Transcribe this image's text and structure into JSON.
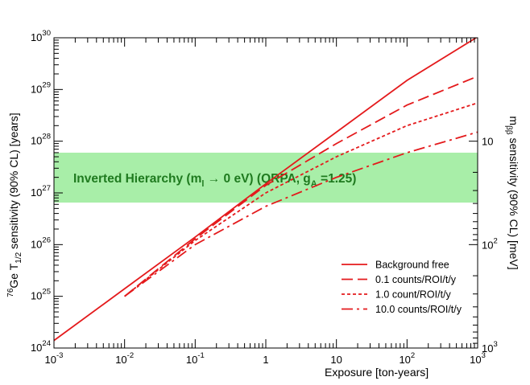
{
  "chart_data": {
    "type": "line",
    "x_scale": "log",
    "y_scale": "log",
    "xlim": [
      0.001,
      1000
    ],
    "ylim": [
      1e+24,
      1e+30
    ],
    "xlabel": "Exposure [ton-years]",
    "ylabel": {
      "pre": "76",
      "main": "Ge T",
      "sub": "1/2",
      "post": " sensitivity (90% CL) [years]"
    },
    "y2label": {
      "main": "m",
      "sub": "ββ",
      "post": " sensitivity (90% CL) [meV]"
    },
    "x_ticks": [
      {
        "value": 0.001,
        "base": "10",
        "exp": "-3"
      },
      {
        "value": 0.01,
        "base": "10",
        "exp": "-2"
      },
      {
        "value": 0.1,
        "base": "10",
        "exp": "-1"
      },
      {
        "value": 1,
        "base": "1",
        "exp": ""
      },
      {
        "value": 10,
        "base": "10",
        "exp": ""
      },
      {
        "value": 100,
        "base": "10",
        "exp": "2"
      },
      {
        "value": 1000,
        "base": "10",
        "exp": "3"
      }
    ],
    "y_ticks": [
      {
        "value": 1e+24,
        "base": "10",
        "exp": "24"
      },
      {
        "value": 1e+25,
        "base": "10",
        "exp": "25"
      },
      {
        "value": 1e+26,
        "base": "10",
        "exp": "26"
      },
      {
        "value": 1e+27,
        "base": "10",
        "exp": "27"
      },
      {
        "value": 1e+28,
        "base": "10",
        "exp": "28"
      },
      {
        "value": 1e+29,
        "base": "10",
        "exp": "29"
      },
      {
        "value": 1e+30,
        "base": "10",
        "exp": "30"
      }
    ],
    "y2_ticks": [
      {
        "value": 1e+28,
        "base": "10",
        "exp": ""
      },
      {
        "value": 1e+26,
        "base": "10",
        "exp": "2"
      },
      {
        "value": 1e+24,
        "base": "10",
        "exp": "3"
      }
    ],
    "band": {
      "y_low": 6.5e+26,
      "y_high": 6e+27,
      "color": "#a8eea8",
      "label": {
        "part1": "Inverted Hierarchy (m",
        "sub1": "l",
        "part2": " → 0 eV) (QRPA, g",
        "sub2": "A",
        "part3": " =1.25)"
      }
    },
    "series": [
      {
        "name": "Background free",
        "style": "solid",
        "color": "#e41a1c",
        "x": [
          0.001,
          0.01,
          0.1,
          1,
          10,
          100,
          950
        ],
        "y": [
          1.4e+24,
          1.4e+25,
          1.4e+26,
          1.5e+27,
          1.5e+28,
          1.5e+29,
          1e+30
        ]
      },
      {
        "name": "0.1 counts/ROI/t/y",
        "style": "dash",
        "color": "#e41a1c",
        "x": [
          0.01,
          0.1,
          1,
          10,
          100,
          1000
        ],
        "y": [
          1e+25,
          1.3e+26,
          1.4e+27,
          9e+27,
          5e+28,
          1.8e+29
        ]
      },
      {
        "name": "1.0 count/ROI/t/y",
        "style": "dot",
        "color": "#e41a1c",
        "x": [
          0.01,
          0.1,
          1,
          10,
          100,
          1000
        ],
        "y": [
          1e+25,
          1.2e+26,
          1e+27,
          5e+27,
          2e+28,
          5.5e+28
        ]
      },
      {
        "name": "10.0 counts/ROI/t/y",
        "style": "dashdot",
        "color": "#e41a1c",
        "x": [
          0.01,
          0.1,
          1,
          10,
          100,
          1000
        ],
        "y": [
          1e+25,
          1e+26,
          5.5e+26,
          2e+27,
          6e+27,
          1.5e+28
        ]
      }
    ],
    "legend_placement": "bottom-right"
  }
}
